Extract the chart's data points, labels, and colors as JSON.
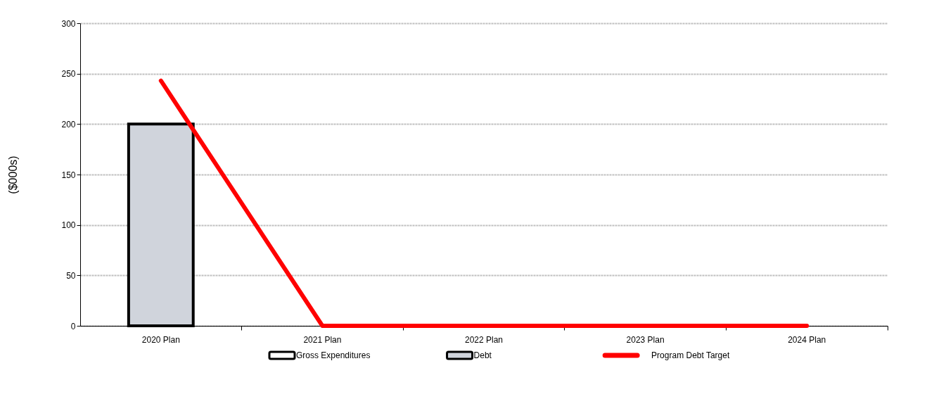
{
  "chart_data": {
    "type": "bar",
    "ylabel": "($000s)",
    "categories": [
      "2020 Plan",
      "2021 Plan",
      "2022 Plan",
      "2023 Plan",
      "2024 Plan"
    ],
    "series": [
      {
        "name": "Gross Expenditures",
        "color": "#ffffff",
        "values": [
          null,
          0,
          0,
          0,
          0
        ]
      },
      {
        "name": "Debt",
        "color": "#d0d4dc",
        "values": [
          200,
          0,
          0,
          0,
          0
        ]
      },
      {
        "name": "Program Debt Target",
        "type": "line",
        "color": "#ff0000",
        "values": [
          243,
          0,
          0,
          0,
          0
        ]
      }
    ],
    "ylim": [
      0,
      300
    ],
    "yticks": [
      0,
      50,
      100,
      150,
      200,
      250,
      300
    ],
    "grid": "y",
    "legend": "bottom"
  }
}
